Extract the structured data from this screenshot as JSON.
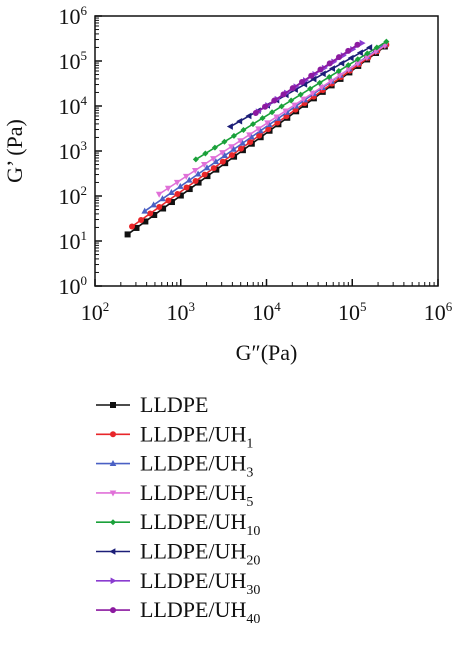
{
  "chart_data": {
    "type": "line",
    "x_scale": "log",
    "y_scale": "log",
    "xlabel": "G″(Pa)",
    "ylabel": "G’ (Pa)",
    "xlim": [
      100,
      1000000
    ],
    "ylim": [
      1,
      1000000
    ],
    "x_ticks": [
      {
        "base": "10",
        "exp": "2"
      },
      {
        "base": "10",
        "exp": "3"
      },
      {
        "base": "10",
        "exp": "4"
      },
      {
        "base": "10",
        "exp": "5"
      },
      {
        "base": "10",
        "exp": "6"
      }
    ],
    "y_ticks": [
      {
        "base": "10",
        "exp": "0"
      },
      {
        "base": "10",
        "exp": "1"
      },
      {
        "base": "10",
        "exp": "2"
      },
      {
        "base": "10",
        "exp": "3"
      },
      {
        "base": "10",
        "exp": "4"
      },
      {
        "base": "10",
        "exp": "5"
      },
      {
        "base": "10",
        "exp": "6"
      }
    ],
    "legend_position": "below",
    "series": [
      {
        "name": "LLDPE",
        "name_base": "LLDPE",
        "name_sub": "",
        "color": "#111111",
        "marker": "square",
        "x": [
          240,
          240000
        ],
        "y": [
          14,
          210000
        ]
      },
      {
        "name": "LLDPE/UH1",
        "name_base": "LLDPE/UH",
        "name_sub": "1",
        "color": "#e8262a",
        "marker": "circle",
        "x": [
          270,
          250000
        ],
        "y": [
          21,
          230000
        ]
      },
      {
        "name": "LLDPE/UH3",
        "name_base": "LLDPE/UH",
        "name_sub": "3",
        "color": "#4a60c4",
        "marker": "triangle-up",
        "x": [
          380,
          240000
        ],
        "y": [
          46,
          235000
        ]
      },
      {
        "name": "LLDPE/UH5",
        "name_base": "LLDPE/UH",
        "name_sub": "5",
        "color": "#e070d8",
        "marker": "triangle-down",
        "x": [
          560,
          240000
        ],
        "y": [
          110,
          220000
        ]
      },
      {
        "name": "LLDPE/UH10",
        "name_base": "LLDPE/UH",
        "name_sub": "10",
        "color": "#1aa13a",
        "marker": "diamond",
        "x": [
          1500,
          250000
        ],
        "y": [
          650,
          270000
        ]
      },
      {
        "name": "LLDPE/UH20",
        "name_base": "LLDPE/UH",
        "name_sub": "20",
        "color": "#1c1e78",
        "marker": "triangle-left",
        "x": [
          3800,
          160000
        ],
        "y": [
          3500,
          200000
        ]
      },
      {
        "name": "LLDPE/UH30",
        "name_base": "LLDPE/UH",
        "name_sub": "30",
        "color": "#8a3cd0",
        "marker": "triangle-right",
        "x": [
          8000,
          130000
        ],
        "y": [
          7500,
          250000
        ]
      },
      {
        "name": "LLDPE/UH40",
        "name_base": "LLDPE/UH",
        "name_sub": "40",
        "color": "#8c1aa0",
        "marker": "circle",
        "x": [
          7500,
          115000
        ],
        "y": [
          7000,
          230000
        ]
      }
    ]
  }
}
